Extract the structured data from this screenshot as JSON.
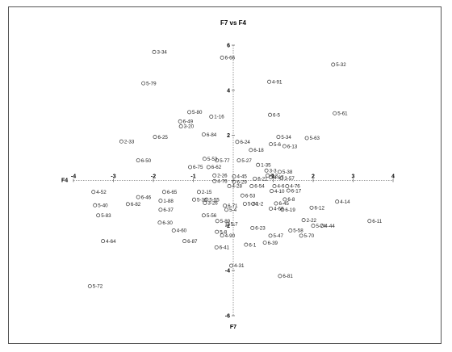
{
  "chart_data": {
    "type": "scatter",
    "title": "F7 vs F4",
    "xlabel": "F4",
    "ylabel": "F7",
    "xlim": [
      -4,
      4
    ],
    "ylim": [
      -6,
      6
    ],
    "x_ticks": [
      -4,
      -3,
      -2,
      -1,
      0,
      1,
      2,
      3,
      4
    ],
    "y_ticks": [
      -6,
      -4,
      -2,
      0,
      2,
      4,
      6
    ],
    "grid": false,
    "points": [
      {
        "label": "3-34",
        "x": -1.98,
        "y": 5.7
      },
      {
        "label": "6-66",
        "x": -0.28,
        "y": 5.45
      },
      {
        "label": "5-32",
        "x": 2.5,
        "y": 5.14
      },
      {
        "label": "5-79",
        "x": -2.25,
        "y": 4.31
      },
      {
        "label": "4-91",
        "x": 0.9,
        "y": 4.38
      },
      {
        "label": "5-80",
        "x": -1.1,
        "y": 3.03
      },
      {
        "label": "1-16",
        "x": -0.55,
        "y": 2.83
      },
      {
        "label": "6-5",
        "x": 0.92,
        "y": 2.91
      },
      {
        "label": "5-61",
        "x": 2.54,
        "y": 2.98
      },
      {
        "label": "6-49",
        "x": -1.33,
        "y": 2.62
      },
      {
        "label": "3-20",
        "x": -1.31,
        "y": 2.4
      },
      {
        "label": "6-84",
        "x": -0.74,
        "y": 2.04
      },
      {
        "label": "6-25",
        "x": -1.96,
        "y": 1.93
      },
      {
        "label": "2-33",
        "x": -2.8,
        "y": 1.73
      },
      {
        "label": "5-34",
        "x": 1.13,
        "y": 1.93
      },
      {
        "label": "5-63",
        "x": 1.84,
        "y": 1.88
      },
      {
        "label": "6-24",
        "x": 0.1,
        "y": 1.71
      },
      {
        "label": "5-6",
        "x": 0.94,
        "y": 1.61
      },
      {
        "label": "6-13",
        "x": 1.28,
        "y": 1.52
      },
      {
        "label": "6-18",
        "x": 0.44,
        "y": 1.35
      },
      {
        "label": "6-50",
        "x": -2.38,
        "y": 0.89
      },
      {
        "label": "5-53",
        "x": -0.72,
        "y": 0.96
      },
      {
        "label": "5-77",
        "x": -0.41,
        "y": 0.89
      },
      {
        "label": "5-27",
        "x": 0.14,
        "y": 0.89
      },
      {
        "label": "6-75",
        "x": -1.08,
        "y": 0.59
      },
      {
        "label": "6-62",
        "x": -0.62,
        "y": 0.59
      },
      {
        "label": "1-35",
        "x": 0.62,
        "y": 0.69
      },
      {
        "label": "3-3",
        "x": 0.83,
        "y": 0.44
      },
      {
        "label": "5-38",
        "x": 1.16,
        "y": 0.38
      },
      {
        "label": "6-3",
        "x": 0.86,
        "y": 0.22
      },
      {
        "label": "4-67",
        "x": 0.94,
        "y": 0.14
      },
      {
        "label": "3-57",
        "x": 1.21,
        "y": 0.1
      },
      {
        "label": "2-26",
        "x": -0.47,
        "y": 0.22
      },
      {
        "label": "4-45",
        "x": 0.02,
        "y": 0.18
      },
      {
        "label": "6-21",
        "x": 0.54,
        "y": 0.08
      },
      {
        "label": "4-76",
        "x": -0.47,
        "y": -0.03
      },
      {
        "label": "6-29",
        "x": 0.02,
        "y": -0.06
      },
      {
        "label": "4-28",
        "x": -0.1,
        "y": -0.25
      },
      {
        "label": "6-54",
        "x": 0.46,
        "y": -0.25
      },
      {
        "label": "4-6",
        "x": 1.03,
        "y": -0.25
      },
      {
        "label": "4-76",
        "x": 1.35,
        "y": -0.25
      },
      {
        "label": "4-52",
        "x": -3.5,
        "y": -0.51
      },
      {
        "label": "6-65",
        "x": -1.73,
        "y": -0.51
      },
      {
        "label": "2-15",
        "x": -0.86,
        "y": -0.51
      },
      {
        "label": "6-53",
        "x": 0.23,
        "y": -0.67
      },
      {
        "label": "4-10",
        "x": 0.96,
        "y": -0.47
      },
      {
        "label": "6-17",
        "x": 1.38,
        "y": -0.45
      },
      {
        "label": "6-46",
        "x": -2.38,
        "y": -0.74
      },
      {
        "label": "1-88",
        "x": -1.82,
        "y": -0.9
      },
      {
        "label": "5-36",
        "x": -0.98,
        "y": -0.85
      },
      {
        "label": "5-55",
        "x": -0.67,
        "y": -0.85
      },
      {
        "label": "6-8",
        "x": 1.29,
        "y": -0.84
      },
      {
        "label": "6-82",
        "x": -2.64,
        "y": -1.05
      },
      {
        "label": "5-40",
        "x": -3.46,
        "y": -1.1
      },
      {
        "label": "3-26",
        "x": -0.71,
        "y": -1.0
      },
      {
        "label": "6-71",
        "x": -0.21,
        "y": -1.12
      },
      {
        "label": "5-74",
        "x": 0.29,
        "y": -1.04
      },
      {
        "label": "1-2",
        "x": 0.5,
        "y": -1.04
      },
      {
        "label": "6-45",
        "x": 1.07,
        "y": -1.02
      },
      {
        "label": "4-68",
        "x": 0.94,
        "y": -1.25
      },
      {
        "label": "6-19",
        "x": 1.23,
        "y": -1.3
      },
      {
        "label": "6-12",
        "x": 1.96,
        "y": -1.21
      },
      {
        "label": "4-14",
        "x": 2.6,
        "y": -0.94
      },
      {
        "label": "6-37",
        "x": -1.82,
        "y": -1.3
      },
      {
        "label": "5-83",
        "x": -3.38,
        "y": -1.55
      },
      {
        "label": "5-4",
        "x": -0.17,
        "y": -1.3
      },
      {
        "label": "5-56",
        "x": -0.74,
        "y": -1.55
      },
      {
        "label": "6-30",
        "x": -1.84,
        "y": -1.87
      },
      {
        "label": "5-89",
        "x": -0.4,
        "y": -1.8
      },
      {
        "label": "5-7",
        "x": -0.14,
        "y": -1.93
      },
      {
        "label": "2-22",
        "x": 1.76,
        "y": -1.76
      },
      {
        "label": "5-74",
        "x": 2.0,
        "y": -2.01
      },
      {
        "label": "4-44",
        "x": 2.22,
        "y": -2.01
      },
      {
        "label": "6-11",
        "x": 3.41,
        "y": -1.8
      },
      {
        "label": "4-60",
        "x": -1.49,
        "y": -2.22
      },
      {
        "label": "5-8",
        "x": -0.41,
        "y": -2.28
      },
      {
        "label": "4-90",
        "x": -0.28,
        "y": -2.44
      },
      {
        "label": "6-23",
        "x": 0.48,
        "y": -2.11
      },
      {
        "label": "5-58",
        "x": 1.43,
        "y": -2.22
      },
      {
        "label": "5-47",
        "x": 0.93,
        "y": -2.45
      },
      {
        "label": "5-70",
        "x": 1.7,
        "y": -2.45
      },
      {
        "label": "4-64",
        "x": -3.26,
        "y": -2.69
      },
      {
        "label": "6-87",
        "x": -1.22,
        "y": -2.69
      },
      {
        "label": "6-41",
        "x": -0.42,
        "y": -2.97
      },
      {
        "label": "6-1",
        "x": 0.32,
        "y": -2.85
      },
      {
        "label": "6-39",
        "x": 0.79,
        "y": -2.76
      },
      {
        "label": "4-31",
        "x": -0.05,
        "y": -3.78
      },
      {
        "label": "6-81",
        "x": 1.17,
        "y": -4.24
      },
      {
        "label": "5-72",
        "x": -3.59,
        "y": -4.69
      }
    ]
  }
}
